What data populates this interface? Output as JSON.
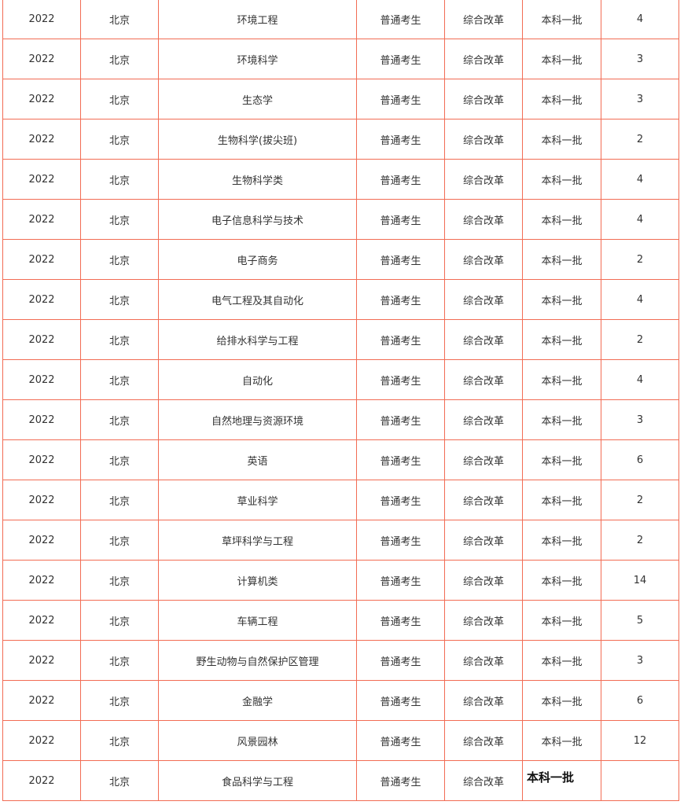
{
  "rows": [
    [
      "2022",
      "北京",
      "环境工程",
      "普通考生",
      "综合改革",
      "本科一批",
      "4"
    ],
    [
      "2022",
      "北京",
      "环境科学",
      "普通考生",
      "综合改革",
      "本科一批",
      "3"
    ],
    [
      "2022",
      "北京",
      "生态学",
      "普通考生",
      "综合改革",
      "本科一批",
      "3"
    ],
    [
      "2022",
      "北京",
      "生物科学(拔尖班)",
      "普通考生",
      "综合改革",
      "本科一批",
      "2"
    ],
    [
      "2022",
      "北京",
      "生物科学类",
      "普通考生",
      "综合改革",
      "本科一批",
      "4"
    ],
    [
      "2022",
      "北京",
      "电子信息科学与技术",
      "普通考生",
      "综合改革",
      "本科一批",
      "4"
    ],
    [
      "2022",
      "北京",
      "电子商务",
      "普通考生",
      "综合改革",
      "本科一批",
      "2"
    ],
    [
      "2022",
      "北京",
      "电气工程及其自动化",
      "普通考生",
      "综合改革",
      "本科一批",
      "4"
    ],
    [
      "2022",
      "北京",
      "给排水科学与工程",
      "普通考生",
      "综合改革",
      "本科一批",
      "2"
    ],
    [
      "2022",
      "北京",
      "自动化",
      "普通考生",
      "综合改革",
      "本科一批",
      "4"
    ],
    [
      "2022",
      "北京",
      "自然地理与资源环境",
      "普通考生",
      "综合改革",
      "本科一批",
      "3"
    ],
    [
      "2022",
      "北京",
      "英语",
      "普通考生",
      "综合改革",
      "本科一批",
      "6"
    ],
    [
      "2022",
      "北京",
      "草业科学",
      "普通考生",
      "综合改革",
      "本科一批",
      "2"
    ],
    [
      "2022",
      "北京",
      "草坪科学与工程",
      "普通考生",
      "综合改革",
      "本科一批",
      "2"
    ],
    [
      "2022",
      "北京",
      "计算机类",
      "普通考生",
      "综合改革",
      "本科一批",
      "14"
    ],
    [
      "2022",
      "北京",
      "车辆工程",
      "普通考生",
      "综合改革",
      "本科一批",
      "5"
    ],
    [
      "2022",
      "北京",
      "野生动物与自然保护区管理",
      "普通考生",
      "综合改革",
      "本科一批",
      "3"
    ],
    [
      "2022",
      "北京",
      "金融学",
      "普通考生",
      "综合改革",
      "本科一批",
      "6"
    ],
    [
      "2022",
      "北京",
      "风景园林",
      "普通考生",
      "综合改革",
      "本科一批",
      "12"
    ],
    [
      "2022",
      "北京",
      "食品科学与工程",
      "普通考生",
      "综合改革",
      "",
      ""
    ]
  ],
  "last_row_overlay": "本科一批"
}
